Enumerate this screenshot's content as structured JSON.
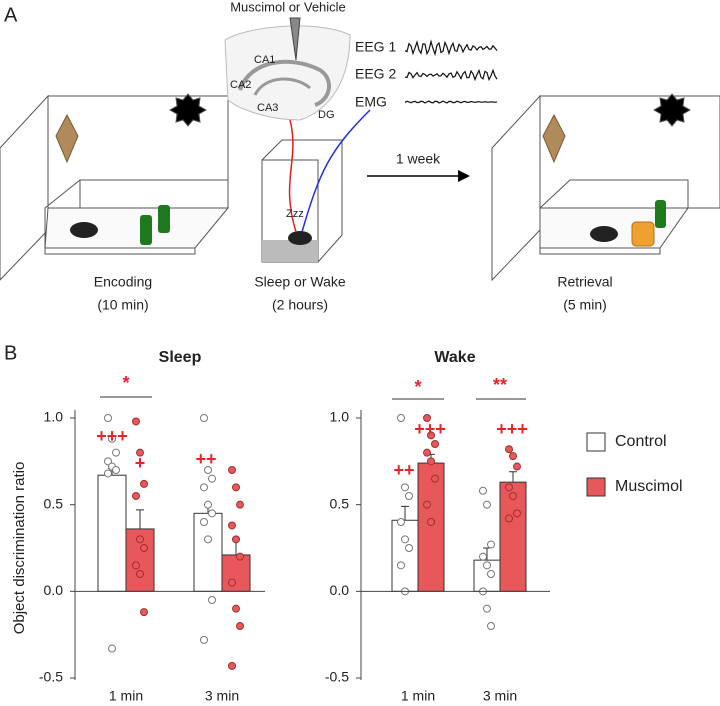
{
  "panel_a": {
    "label": "A",
    "drug": "Muscimol or Vehicle",
    "regions": [
      "CA1",
      "CA2",
      "CA3",
      "DG"
    ],
    "signals": [
      "EEG 1",
      "EEG 2",
      "EMG"
    ],
    "interval": "1 week",
    "stages": [
      {
        "name": "Encoding",
        "duration": "(10 min)"
      },
      {
        "name": "Sleep or Wake",
        "duration": "(2 hours)"
      },
      {
        "name": "Retrieval",
        "duration": "(5 min)"
      }
    ]
  },
  "panel_b_label": "B",
  "chart_data": [
    {
      "type": "bar",
      "title": "Sleep",
      "ylabel": "Object discrimination ratio",
      "categories": [
        "1 min",
        "3 min"
      ],
      "ylim": [
        -0.5,
        1.0
      ],
      "yticks": [
        {
          "value": -0.5,
          "label": "-0.5"
        },
        {
          "value": 0,
          "label": "0.0"
        },
        {
          "value": 0.5,
          "label": "0.5"
        },
        {
          "value": 1,
          "label": "1.0"
        }
      ],
      "series": [
        {
          "color": "#ffffff",
          "values": [
            0.67,
            0.45
          ],
          "errors": [
            0.04,
            0.05
          ],
          "points": [
            [
              1.0,
              0.88,
              0.8,
              0.75,
              0.72,
              0.7,
              0.68,
              -0.33
            ],
            [
              1.0,
              0.7,
              0.65,
              0.6,
              0.5,
              0.45,
              0.4,
              0.3,
              -0.05,
              -0.28
            ]
          ]
        },
        {
          "color": "#e8585a",
          "values": [
            0.36,
            0.21
          ],
          "errors": [
            0.11,
            0.09
          ],
          "points": [
            [
              0.98,
              0.8,
              0.62,
              0.55,
              0.3,
              0.25,
              0.15,
              0.1,
              -0.12
            ],
            [
              0.7,
              0.6,
              0.5,
              0.38,
              0.3,
              0.2,
              0.05,
              -0.1,
              -0.2,
              -0.43
            ]
          ]
        }
      ],
      "annotations": [
        "*",
        "+++",
        "+",
        "++"
      ]
    },
    {
      "type": "bar",
      "title": "Wake",
      "categories": [
        "1 min",
        "3 min"
      ],
      "ylim": [
        -0.5,
        1.0
      ],
      "yticks": [
        {
          "value": -0.5,
          "label": "-0.5"
        },
        {
          "value": 0,
          "label": "0.0"
        },
        {
          "value": 0.5,
          "label": "0.5"
        },
        {
          "value": 1,
          "label": "1.0"
        }
      ],
      "series": [
        {
          "name": "Control",
          "color": "#ffffff",
          "values": [
            0.41,
            0.18
          ],
          "errors": [
            0.08,
            0.07
          ],
          "points": [
            [
              1.0,
              0.6,
              0.55,
              0.4,
              0.3,
              0.25,
              0.15,
              0.0
            ],
            [
              0.58,
              0.5,
              0.27,
              0.2,
              0.15,
              0.1,
              0.0,
              -0.1,
              -0.2
            ]
          ]
        },
        {
          "name": "Muscimol",
          "color": "#e8585a",
          "values": [
            0.74,
            0.63
          ],
          "errors": [
            0.05,
            0.06
          ],
          "points": [
            [
              1.0,
              0.9,
              0.85,
              0.8,
              0.75,
              0.65,
              0.5,
              0.4
            ],
            [
              0.82,
              0.78,
              0.72,
              0.6,
              0.55,
              0.45,
              0.42
            ]
          ]
        }
      ],
      "annotations": [
        "*",
        "**",
        "++",
        "+++",
        "+++"
      ]
    }
  ]
}
